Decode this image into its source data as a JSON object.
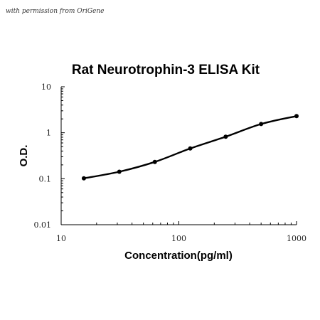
{
  "watermark": "with permission from OriGene",
  "chart_data": {
    "type": "line",
    "title": "Rat Neurotrophin-3 ELISA Kit",
    "xlabel": "Concentration(pg/ml)",
    "ylabel": "O.D.",
    "x_scale": "log",
    "y_scale": "log",
    "xlim": [
      10,
      1000
    ],
    "ylim": [
      0.01,
      10
    ],
    "x_ticks": [
      10,
      100,
      1000
    ],
    "x_tick_labels": [
      "10",
      "100",
      "1000"
    ],
    "y_ticks": [
      0.01,
      0.1,
      1,
      10
    ],
    "y_tick_labels": [
      "0.01",
      "0.1",
      "1",
      "10"
    ],
    "grid": false,
    "legend": "none",
    "series": [
      {
        "x": [
          15.6,
          31.2,
          62.5,
          125,
          250,
          500,
          1000
        ],
        "y": [
          0.102,
          0.142,
          0.232,
          0.455,
          0.82,
          1.55,
          2.3
        ]
      }
    ],
    "colors": {
      "line": "#000000",
      "point": "#000000"
    }
  }
}
